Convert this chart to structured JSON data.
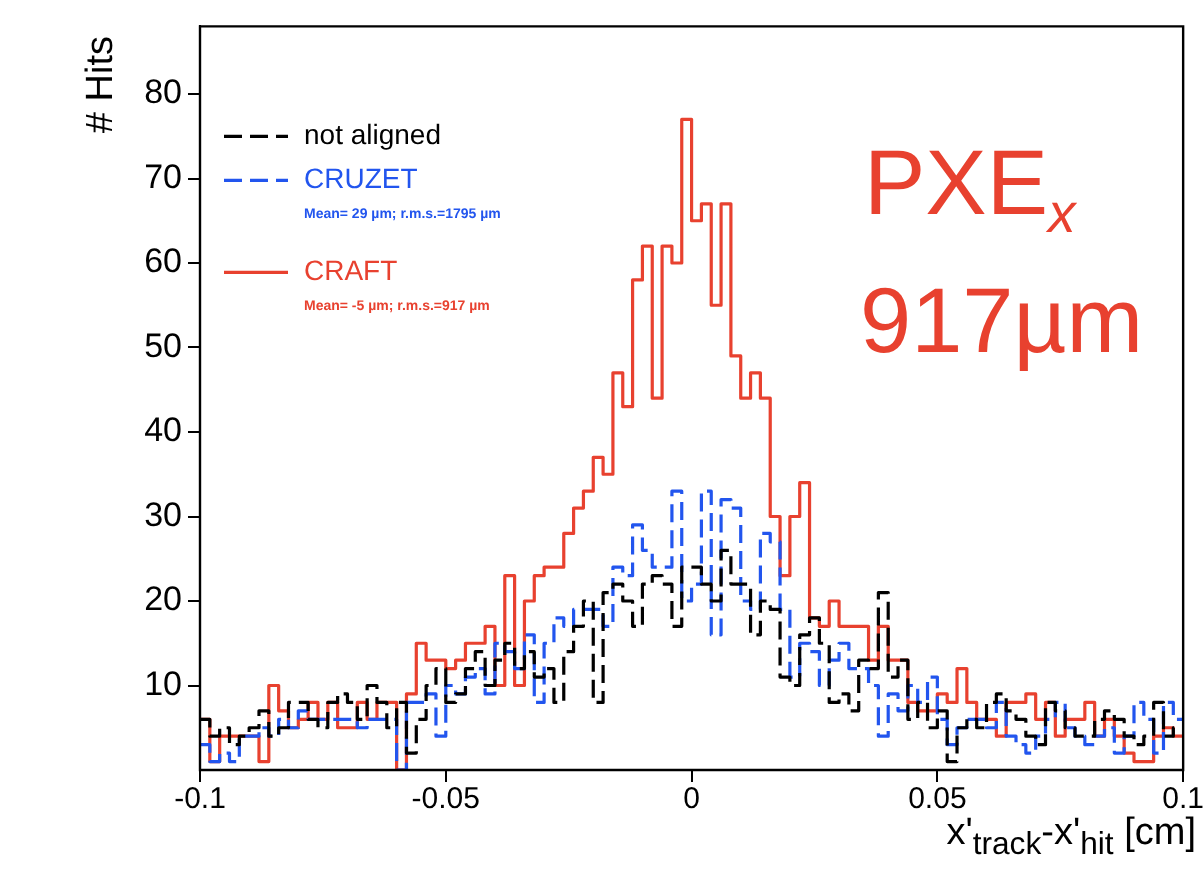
{
  "chart_data": {
    "type": "histogram",
    "ylabel": "# Hits",
    "xlabel": "x'$_{track}$-x'$_{hit}$ [cm]",
    "bins": [
      -0.1,
      -0.098,
      -0.096,
      -0.094,
      -0.092,
      -0.09,
      -0.088,
      -0.086,
      -0.084,
      -0.082,
      -0.08,
      -0.078,
      -0.076,
      -0.074,
      -0.072,
      -0.07,
      -0.068,
      -0.066,
      -0.064,
      -0.062,
      -0.06,
      -0.058,
      -0.056,
      -0.054,
      -0.052,
      -0.05,
      -0.048,
      -0.046,
      -0.044,
      -0.042,
      -0.04,
      -0.038,
      -0.036,
      -0.034,
      -0.032,
      -0.03,
      -0.028,
      -0.026,
      -0.024,
      -0.022,
      -0.02,
      -0.018,
      -0.016,
      -0.014,
      -0.012,
      -0.01,
      -0.008,
      -0.006,
      -0.004,
      -0.002,
      0,
      0.002,
      0.004,
      0.006,
      0.008,
      0.01,
      0.012,
      0.014,
      0.016,
      0.018,
      0.02,
      0.022,
      0.024,
      0.026,
      0.028,
      0.03,
      0.032,
      0.034,
      0.036,
      0.038,
      0.04,
      0.042,
      0.044,
      0.046,
      0.048,
      0.05,
      0.052,
      0.054,
      0.056,
      0.058,
      0.06,
      0.062,
      0.064,
      0.066,
      0.068,
      0.07,
      0.072,
      0.074,
      0.076,
      0.078,
      0.08,
      0.082,
      0.084,
      0.086,
      0.088,
      0.09,
      0.092,
      0.094,
      0.096,
      0.098,
      0.1
    ],
    "series": [
      {
        "name": "not aligned",
        "color": "#000000",
        "line_style": "dashed",
        "values": [
          6,
          4,
          5,
          3,
          4,
          5,
          7,
          4,
          5,
          8,
          8,
          6,
          5,
          8,
          9,
          8,
          6,
          10,
          8,
          5,
          8,
          2,
          6,
          10,
          12,
          8,
          9,
          12,
          14,
          10,
          13,
          15,
          12,
          14,
          11,
          12,
          8,
          14,
          17,
          20,
          8,
          21,
          22,
          20,
          17,
          22,
          23,
          22,
          17,
          24,
          24,
          22,
          20,
          26,
          22,
          22,
          16,
          20,
          19,
          11,
          10,
          16,
          18,
          15,
          8,
          9,
          7,
          13,
          12,
          21,
          11,
          13,
          6,
          8,
          5,
          7,
          1,
          5,
          6,
          5,
          8,
          9,
          7,
          6,
          4,
          3,
          8,
          7,
          5,
          4,
          4,
          6,
          7,
          6,
          4,
          3,
          4,
          8,
          4,
          5
        ]
      },
      {
        "name": "CRUZET",
        "color": "#2255ee",
        "line_style": "dashed",
        "values": [
          3,
          1,
          2,
          1,
          4,
          4,
          5,
          4,
          6,
          5,
          7,
          6,
          6,
          6,
          6,
          6,
          5,
          6,
          6,
          6,
          0,
          8,
          8,
          9,
          4,
          10,
          9,
          11,
          12,
          9,
          15,
          14,
          12,
          16,
          8,
          15,
          18,
          17,
          19,
          19,
          19,
          17,
          24,
          23,
          29,
          26,
          24,
          24,
          33,
          20,
          22,
          33,
          16,
          32,
          31,
          20,
          19,
          28,
          27,
          19,
          11,
          15,
          14,
          10,
          13,
          15,
          12,
          12,
          10,
          4,
          9,
          7,
          10,
          8,
          11,
          6,
          3,
          5,
          6,
          6,
          5,
          8,
          4,
          3,
          2,
          4,
          6,
          8,
          5,
          4,
          3,
          4,
          5,
          2,
          4,
          8,
          6,
          2,
          8,
          6
        ]
      },
      {
        "name": "CRAFT",
        "color": "#e8412f",
        "line_style": "solid",
        "values": [
          6,
          1,
          4,
          4,
          4,
          4,
          1,
          10,
          7,
          5,
          6,
          8,
          6,
          8,
          5,
          5,
          8,
          6,
          8,
          8,
          0,
          9,
          15,
          13,
          13,
          12,
          13,
          15,
          15,
          17,
          10,
          23,
          10,
          20,
          23,
          24,
          24,
          28,
          31,
          33,
          37,
          35,
          47,
          43,
          58,
          62,
          44,
          62,
          60,
          77,
          65,
          67,
          55,
          67,
          49,
          44,
          47,
          44,
          30,
          23,
          30,
          34,
          18,
          17,
          20,
          17,
          17,
          17,
          13,
          17,
          13,
          13,
          8,
          7,
          7,
          9,
          8,
          12,
          8,
          6,
          6,
          4,
          8,
          8,
          9,
          6,
          8,
          4,
          6,
          6,
          8,
          4,
          6,
          4,
          2,
          1,
          1,
          4,
          5,
          4
        ]
      }
    ],
    "xlim": [
      -0.1,
      0.1
    ],
    "xticks": [
      -0.1,
      -0.05,
      0,
      0.05,
      0.1
    ],
    "ylim": [
      0,
      88
    ],
    "yticks": [
      10,
      20,
      30,
      40,
      50,
      60,
      70,
      80
    ],
    "legend": "top left",
    "marker": "none",
    "annotations": [
      "Mean= 29 µm; r.m.s.=1795 µm",
      "Mean= -5 µm; r.m.s.=917 µm",
      "PXE$_{x}$",
      "917µm"
    ]
  }
}
